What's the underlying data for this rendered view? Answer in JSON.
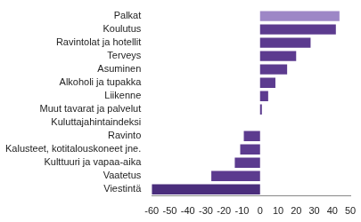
{
  "chart_data": {
    "type": "bar",
    "orientation": "horizontal",
    "categories": [
      "Palkat",
      "Koulutus",
      "Ravintolat ja hotellit",
      "Terveys",
      "Asuminen",
      "Alkoholi ja tupakka",
      "Liikenne",
      "Muut tavarat ja palvelut",
      "Kuluttajahintaindeksi",
      "Ravinto",
      "Kalusteet, kotitalouskoneet jne.",
      "Kulttuuri ja vapaa-aika",
      "Vaatetus",
      "Viestintä"
    ],
    "values": [
      44,
      42,
      28,
      20,
      15,
      8.5,
      4.5,
      1,
      0,
      -9,
      -11,
      -14,
      -27,
      -60
    ],
    "colors": [
      "#9d87c6",
      "#5c3b8f",
      "#5c3b8f",
      "#5c3b8f",
      "#5c3b8f",
      "#5c3b8f",
      "#5c3b8f",
      "#5c3b8f",
      "#5c3b8f",
      "#5c3b8f",
      "#5c3b8f",
      "#5c3b8f",
      "#5c3b8f",
      "#4a2d7c"
    ],
    "xlim": [
      -60,
      50
    ],
    "xticks": [
      -60,
      -50,
      -40,
      -30,
      -20,
      -10,
      0,
      10,
      20,
      30,
      40,
      50
    ],
    "grid": false,
    "data_labels": false
  }
}
